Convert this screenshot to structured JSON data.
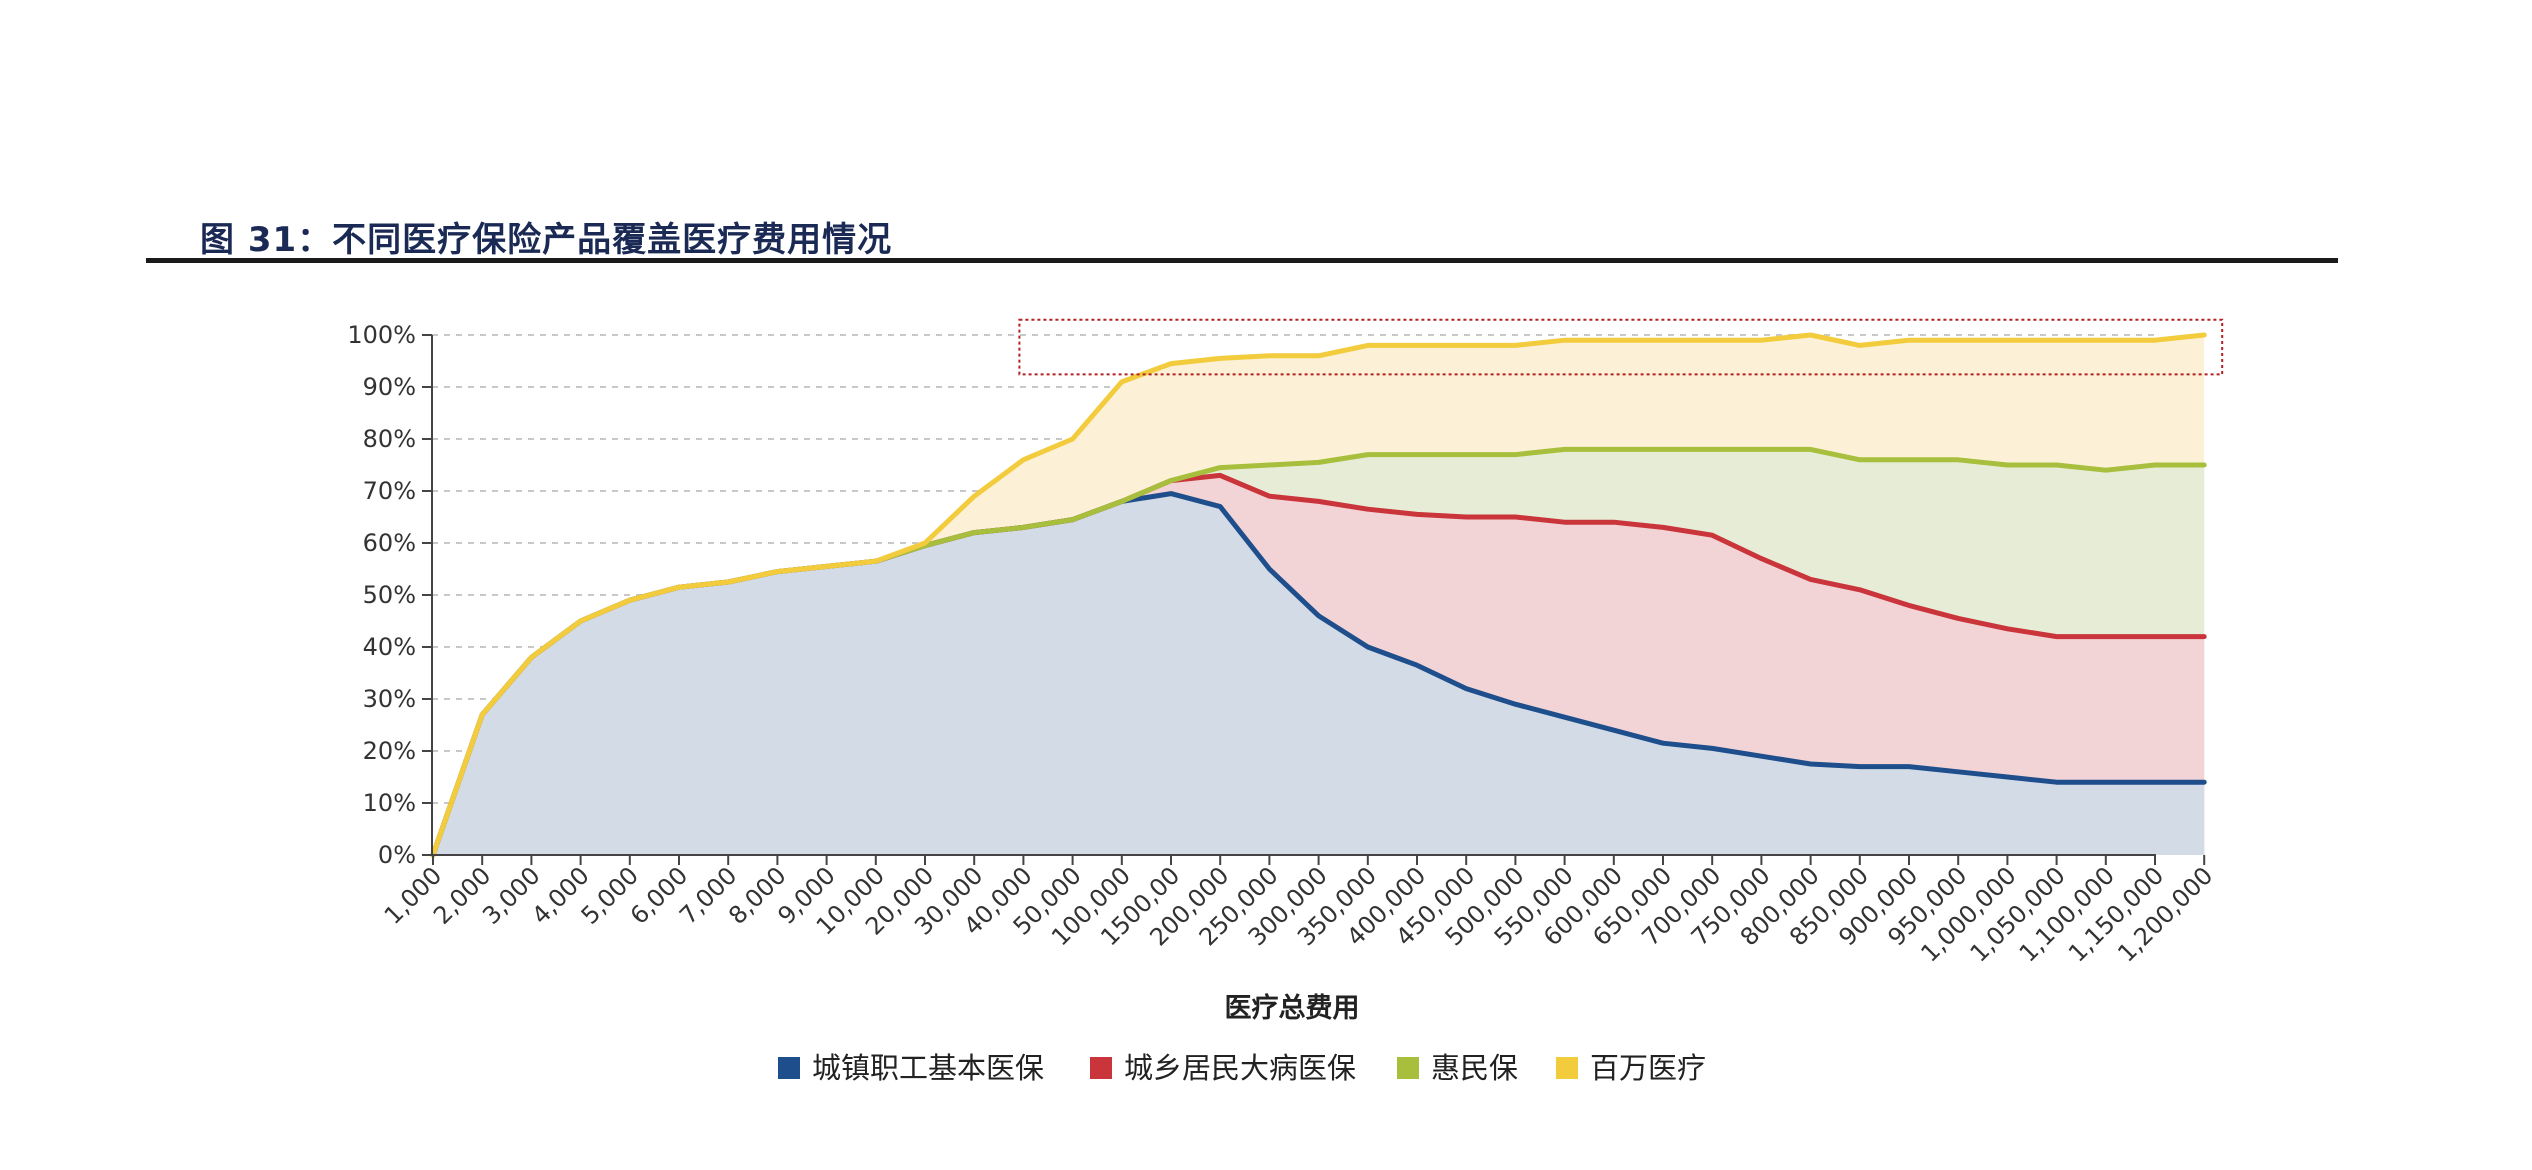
{
  "figure": {
    "title": "图 31：不同医疗保险产品覆盖医疗费用情况"
  },
  "chart_data": {
    "type": "area",
    "categories": [
      "1,000",
      "2,000",
      "3,000",
      "4,000",
      "5,000",
      "6,000",
      "7,000",
      "8,000",
      "9,000",
      "10,000",
      "20,000",
      "30,000",
      "40,000",
      "50,000",
      "100,000",
      "1500,00",
      "200,000",
      "250,000",
      "300,000",
      "350,000",
      "400,000",
      "450,000",
      "500,000",
      "550,000",
      "600,000",
      "650,000",
      "700,000",
      "750,000",
      "800,000",
      "850,000",
      "900,000",
      "950,000",
      "1,000,000",
      "1,050,000",
      "1,100,000",
      "1,150,000",
      "1,200,000"
    ],
    "xlabel": "医疗总费用",
    "ylabel": "",
    "ylim": [
      0,
      100
    ],
    "yticks": [
      "0%",
      "10%",
      "20%",
      "30%",
      "40%",
      "50%",
      "60%",
      "70%",
      "80%",
      "90%",
      "100%"
    ],
    "grid": "horizontal-dashed",
    "legend_position": "bottom",
    "highlight_box": {
      "from_category": "40,000",
      "to_category": "1,200,000",
      "y_range": [
        93,
        101
      ]
    },
    "series": [
      {
        "name": "城镇职工基本医保",
        "color": "#1f4e8c",
        "fill": "#d3dbe6",
        "values": [
          0,
          27,
          38,
          45,
          49,
          51.5,
          52.5,
          54.5,
          55.5,
          56.5,
          59.5,
          62,
          63,
          64.5,
          68,
          69.5,
          67,
          55,
          46,
          40,
          36.5,
          32,
          29,
          26.5,
          24,
          21.5,
          20.5,
          19,
          17.5,
          17,
          17,
          16,
          15,
          14,
          14,
          14,
          14
        ]
      },
      {
        "name": "城乡居民大病医保",
        "color": "#c9353a",
        "fill": "#f2d4d6",
        "values": [
          0,
          27,
          38,
          45,
          49,
          51.5,
          52.5,
          54.5,
          55.5,
          56.5,
          59.5,
          62,
          63,
          64.5,
          68,
          72,
          73,
          69,
          68,
          66.5,
          65.5,
          65,
          65,
          64,
          64,
          63,
          61.5,
          57,
          53,
          51,
          48,
          45.5,
          43.5,
          42,
          42,
          42,
          42
        ]
      },
      {
        "name": "惠民保",
        "color": "#a7bf3c",
        "fill": "#e7ecd7",
        "values": [
          0,
          27,
          38,
          45,
          49,
          51.5,
          52.5,
          54.5,
          55.5,
          56.5,
          59.5,
          62,
          63,
          64.5,
          68,
          72,
          74.5,
          75,
          75.5,
          77,
          77,
          77,
          77,
          78,
          78,
          78,
          78,
          78,
          78,
          76,
          76,
          76,
          75,
          75,
          74,
          75,
          75
        ]
      },
      {
        "name": "百万医疗",
        "color": "#f2cc3d",
        "fill": "#fcf1d6",
        "values": [
          0,
          27,
          38,
          45,
          49,
          51.5,
          52.5,
          54.5,
          55.5,
          56.5,
          60,
          69,
          76,
          80,
          91,
          94.5,
          95.5,
          96,
          96,
          98,
          98,
          98,
          98,
          99,
          99,
          99,
          99,
          99,
          100,
          98,
          99,
          99,
          99,
          99,
          99,
          99,
          100
        ]
      }
    ]
  }
}
